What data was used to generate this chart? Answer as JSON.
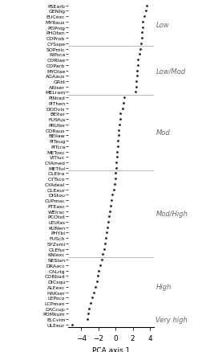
{
  "species": [
    "PSEarb",
    "GENlig",
    "EUCexc",
    "MYRaus",
    "POPnig",
    "PHOten",
    "COProb",
    "CYSspe",
    "SOPmic",
    "RIPsca",
    "CORlae",
    "COParb",
    "MYOlae",
    "AGAaus",
    "GRlit",
    "ARiser",
    "MELram",
    "PINrad",
    "PIThen",
    "DODvis",
    "BEItar",
    "FUSfus",
    "PRUter",
    "CORaus",
    "BEIlaw",
    "PITeug",
    "PITcra",
    "METoxc",
    "VITluc",
    "CYAmed",
    "METful",
    "OLEtra",
    "CYTsco",
    "CYAdeal",
    "OLEeur",
    "DIStou",
    "CUPmac",
    "PTEasc",
    "WEIrac",
    "PCOtot",
    "LEUfas",
    "KUNen",
    "PHYbi",
    "FUSch",
    "SYZsmi",
    "OLEfur",
    "KNIexc",
    "NESlan",
    "DRAacc",
    "CALrig",
    "CORbud",
    "DICsqu",
    "ALEexc",
    "HAKser",
    "LEPsco",
    "LCPman",
    "DACcup",
    "POMkum",
    "ELCvim",
    "ULEeur"
  ],
  "values": [
    3.6,
    3.5,
    3.4,
    3.2,
    3.15,
    3.1,
    3.05,
    2.95,
    2.85,
    2.75,
    2.65,
    2.6,
    2.55,
    2.5,
    2.45,
    2.4,
    2.3,
    1.05,
    0.95,
    0.85,
    0.55,
    0.5,
    0.45,
    0.4,
    0.35,
    0.3,
    0.25,
    0.2,
    0.15,
    0.1,
    0.05,
    0.0,
    -0.05,
    -0.15,
    -0.25,
    -0.35,
    -0.45,
    -0.55,
    -0.65,
    -0.75,
    -0.85,
    -0.95,
    -1.05,
    -1.15,
    -1.25,
    -1.35,
    -1.5,
    -1.6,
    -1.8,
    -2.0,
    -2.1,
    -2.2,
    -2.35,
    -2.5,
    -2.7,
    -2.9,
    -3.1,
    -3.2,
    -3.3,
    -5.1
  ],
  "category_lines_after_idx": [
    7,
    16,
    30,
    46
  ],
  "xlabel": "PCA axis 1",
  "xlim": [
    -5.5,
    4.5
  ],
  "xticks": [
    -4,
    -2,
    0,
    2,
    4
  ],
  "dot_color": "#1a1a1a",
  "line_color": "#bbbbbb",
  "bg_color": "#ffffff",
  "fontsize_labels": 4.5,
  "fontsize_axis": 6.5,
  "fontsize_category": 6.0,
  "cat_label_positions": [
    [
      "Low",
      3.5
    ],
    [
      "Low/Mod",
      12.0
    ],
    [
      "Mod",
      23.5
    ],
    [
      "Mod/High",
      38.5
    ],
    [
      "High",
      52.0
    ],
    [
      "Very high",
      58.0
    ]
  ]
}
